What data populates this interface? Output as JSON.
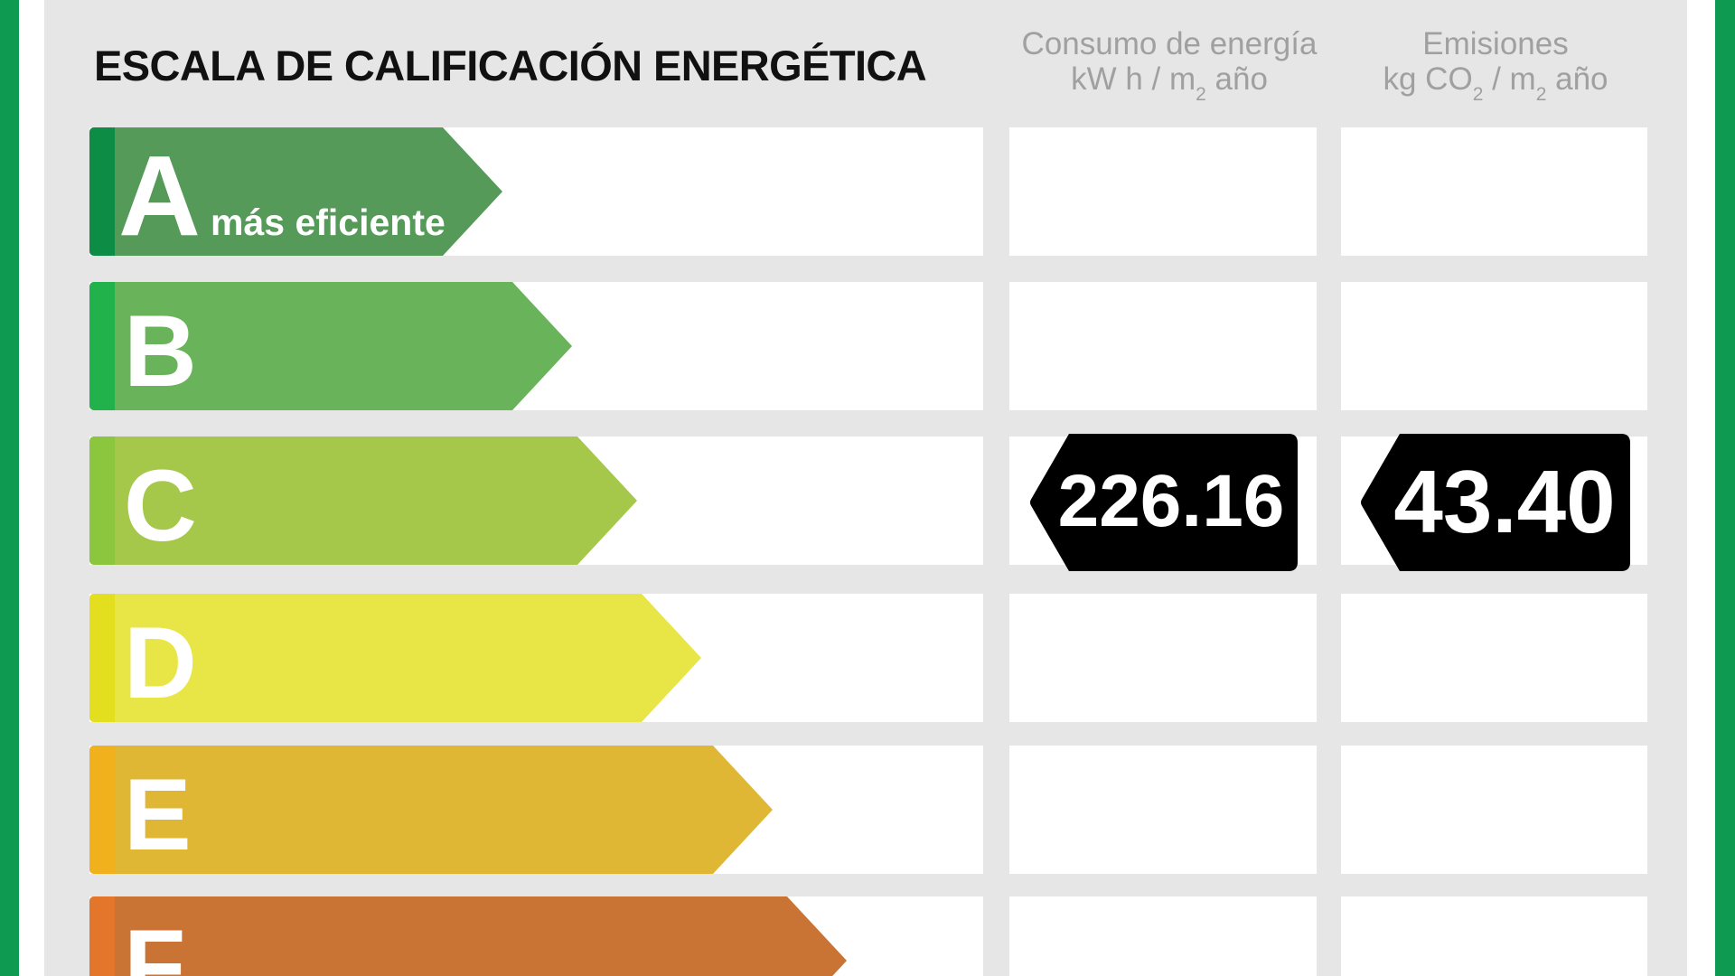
{
  "title": "ESCALA DE CALIFICACIÓN ENERGÉTICA",
  "headers": {
    "consumption": {
      "line1": "Consumo de energía",
      "unit": {
        "a": "kW h / m",
        "sub": "2",
        "b": " año"
      }
    },
    "emissions": {
      "line1": "Emisiones",
      "unit": {
        "a": "kg CO",
        "sub1": "2",
        "b": " / m",
        "sub2": "2",
        "c": " año"
      }
    }
  },
  "ratings": [
    {
      "letter": "A",
      "caption": "más eficiente",
      "color": "#559a59",
      "accent": "#0d8c45"
    },
    {
      "letter": "B",
      "color": "#69b35a",
      "accent": "#21b24b"
    },
    {
      "letter": "C",
      "color": "#a5c84b",
      "accent": "#8cc63f"
    },
    {
      "letter": "D",
      "color": "#e8e547",
      "accent": "#e4df1e"
    },
    {
      "letter": "E",
      "color": "#e0b735",
      "accent": "#f0b11c"
    },
    {
      "letter": "F",
      "color": "#c97434",
      "accent": "#e4762b"
    }
  ],
  "current": {
    "consumption": "226.16",
    "emissions": "43.40"
  },
  "colors": {
    "frame": "#0e9a50",
    "panel": "#e6e6e6",
    "header_text": "#a0a0a0",
    "badge": "#000000"
  }
}
